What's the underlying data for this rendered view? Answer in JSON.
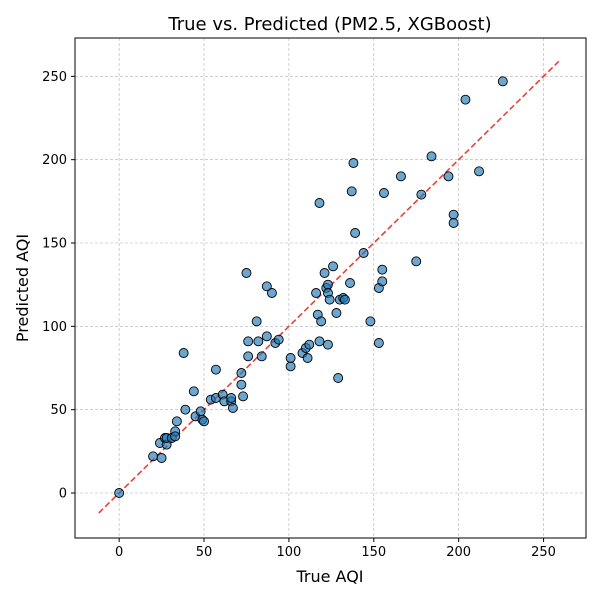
{
  "chart_data": {
    "type": "scatter",
    "title": "True vs. Predicted (PM2.5, XGBoost)",
    "xlabel": "True AQI",
    "ylabel": "Predicted AQI",
    "xlim": [
      -26,
      275
    ],
    "ylim": [
      -27,
      273
    ],
    "xticks": [
      0,
      50,
      100,
      150,
      200,
      250
    ],
    "yticks": [
      0,
      50,
      100,
      150,
      200,
      250
    ],
    "grid": true,
    "point_color": "#1f77b4",
    "point_edge_color": "#000000",
    "reference_line": {
      "style": "dashed",
      "color": "#e8413a",
      "from": [
        -12,
        -12
      ],
      "to": [
        259,
        259
      ]
    },
    "points": [
      [
        0,
        0
      ],
      [
        20,
        22
      ],
      [
        24,
        30
      ],
      [
        25,
        21
      ],
      [
        27,
        33
      ],
      [
        28,
        29
      ],
      [
        28,
        33
      ],
      [
        31,
        33
      ],
      [
        33,
        37
      ],
      [
        33,
        34
      ],
      [
        34,
        43
      ],
      [
        38,
        84
      ],
      [
        39,
        50
      ],
      [
        44,
        61
      ],
      [
        45,
        46
      ],
      [
        48,
        49
      ],
      [
        49,
        44
      ],
      [
        50,
        43
      ],
      [
        54,
        56
      ],
      [
        57,
        74
      ],
      [
        57,
        57
      ],
      [
        61,
        59
      ],
      [
        62,
        55
      ],
      [
        66,
        55
      ],
      [
        66,
        57
      ],
      [
        67,
        51
      ],
      [
        72,
        65
      ],
      [
        72,
        72
      ],
      [
        73,
        58
      ],
      [
        75,
        132
      ],
      [
        76,
        91
      ],
      [
        76,
        82
      ],
      [
        81,
        103
      ],
      [
        82,
        91
      ],
      [
        84,
        82
      ],
      [
        87,
        124
      ],
      [
        87,
        94
      ],
      [
        90,
        120
      ],
      [
        92,
        90
      ],
      [
        94,
        92
      ],
      [
        101,
        76
      ],
      [
        101,
        81
      ],
      [
        108,
        84
      ],
      [
        110,
        87
      ],
      [
        111,
        81
      ],
      [
        112,
        89
      ],
      [
        116,
        120
      ],
      [
        117,
        107
      ],
      [
        118,
        91
      ],
      [
        118,
        174
      ],
      [
        119,
        103
      ],
      [
        121,
        132
      ],
      [
        122,
        123
      ],
      [
        123,
        125
      ],
      [
        123,
        120
      ],
      [
        123,
        89
      ],
      [
        124,
        116
      ],
      [
        126,
        136
      ],
      [
        128,
        108
      ],
      [
        129,
        69
      ],
      [
        130,
        116
      ],
      [
        132,
        117
      ],
      [
        133,
        116
      ],
      [
        136,
        126
      ],
      [
        137,
        181
      ],
      [
        138,
        198
      ],
      [
        139,
        156
      ],
      [
        144,
        144
      ],
      [
        148,
        103
      ],
      [
        153,
        123
      ],
      [
        153,
        90
      ],
      [
        155,
        127
      ],
      [
        155,
        134
      ],
      [
        156,
        180
      ],
      [
        166,
        190
      ],
      [
        175,
        139
      ],
      [
        178,
        179
      ],
      [
        184,
        202
      ],
      [
        194,
        190
      ],
      [
        197,
        167
      ],
      [
        197,
        162
      ],
      [
        204,
        236
      ],
      [
        212,
        193
      ],
      [
        226,
        247
      ]
    ]
  }
}
